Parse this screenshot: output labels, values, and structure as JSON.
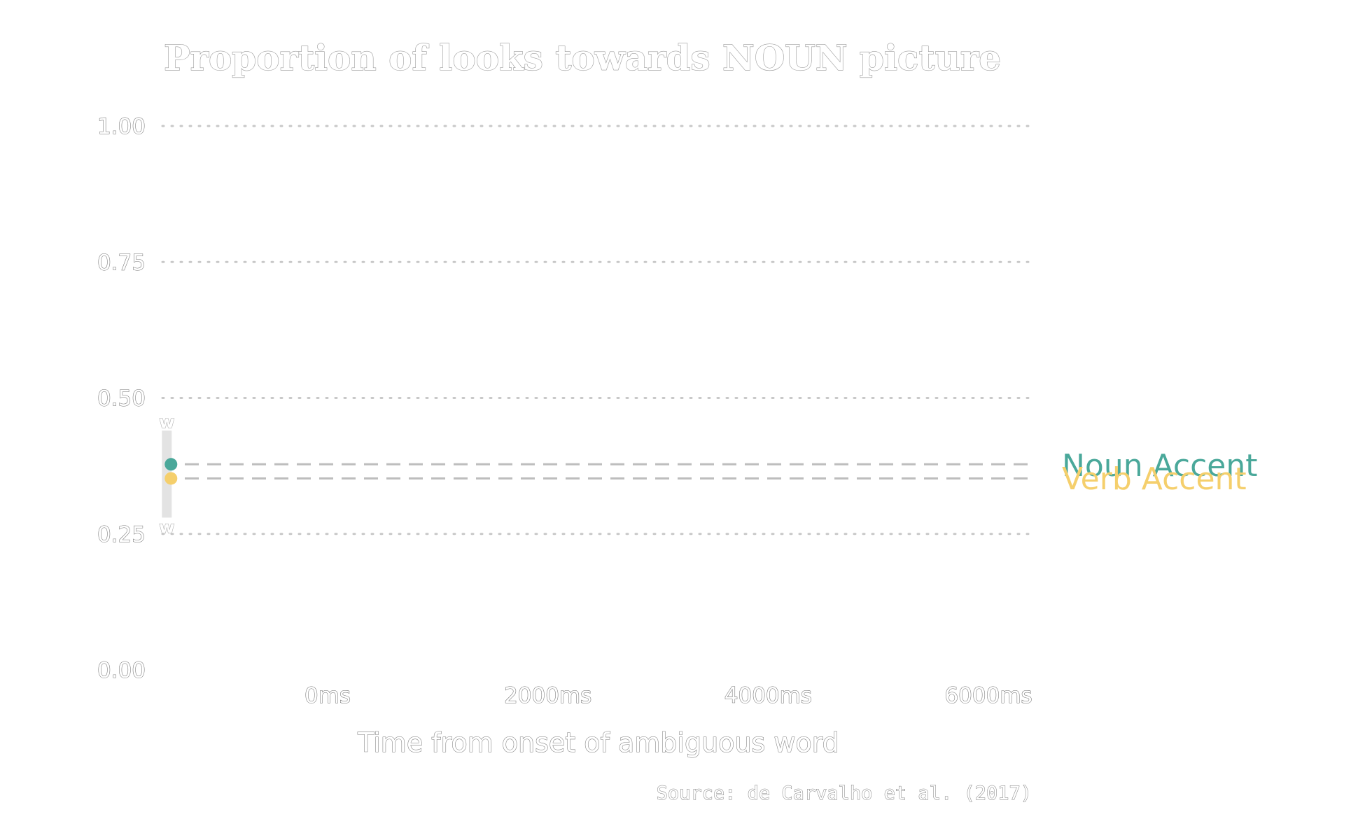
{
  "chart_data": {
    "type": "line",
    "title": "Proportion of looks towards NOUN picture",
    "xlabel": "Time from onset of ambiguous word",
    "ylabel": "",
    "caption": "Source: de Carvalho et al. (2017)",
    "ylim": [
      0,
      1
    ],
    "xlim": [
      -1500,
      6400
    ],
    "x_ticks": [
      0,
      2000,
      4000,
      6000
    ],
    "x_tick_labels": [
      "0ms",
      "2000ms",
      "4000ms",
      "6000ms"
    ],
    "y_ticks": [
      0,
      0.25,
      0.5,
      0.75,
      1
    ],
    "y_tick_labels": [
      "0.00",
      "0.25",
      "0.50",
      "0.75",
      "1.00"
    ],
    "grid": "horizontal dotted",
    "series": [
      {
        "name": "Noun Accent",
        "color": "#4aa89a",
        "x": [
          -1460
        ],
        "y": [
          0.378
        ],
        "reference_y": 0.378,
        "error_low": 0.3,
        "error_high": 0.44
      },
      {
        "name": "Verb Accent",
        "color": "#f5cf6c",
        "x": [
          -1460
        ],
        "y": [
          0.352
        ],
        "reference_y": 0.352,
        "error_low": 0.28,
        "error_high": 0.42
      }
    ],
    "error_bar_label": "w",
    "legend": "right, direct labels at line ends"
  }
}
